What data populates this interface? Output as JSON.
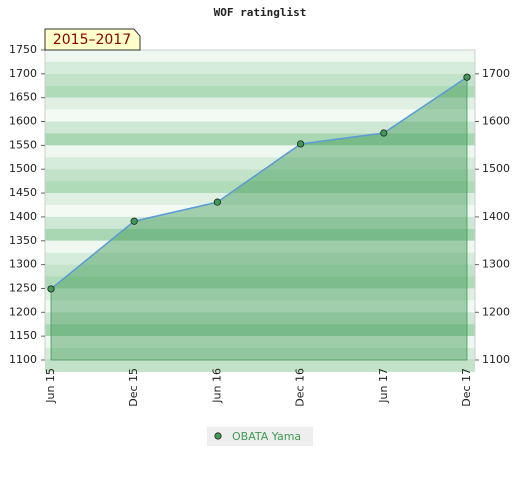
{
  "chart_data": {
    "type": "line",
    "title": "WOF ratinglist",
    "badge": "2015–2017",
    "categories": [
      "Jun 15",
      "Dec 15",
      "Jun 16",
      "Dec 16",
      "Jun 17",
      "Dec 17"
    ],
    "series": [
      {
        "name": "OBATA Yama",
        "color": "#3f9a55",
        "line_color": "#5b9bd5",
        "values": [
          1249,
          1391,
          1431,
          1553,
          1576,
          1693
        ]
      }
    ],
    "ylim": [
      1100,
      1750
    ],
    "yticks": [
      1100,
      1150,
      1200,
      1250,
      1300,
      1350,
      1400,
      1450,
      1500,
      1550,
      1600,
      1650,
      1700,
      1750
    ],
    "y2lim": [
      1100,
      1750
    ],
    "y2ticks": [
      1100,
      1200,
      1300,
      1400,
      1500,
      1600,
      1700
    ]
  }
}
